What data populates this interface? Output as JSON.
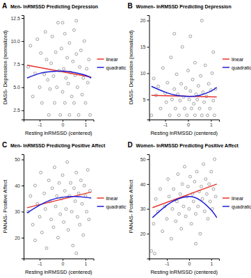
{
  "chart_data": [
    {
      "type": "scatter",
      "annotations": [
        "A"
      ],
      "title": "Men- lnRMSSD Predicting Depression",
      "x_label": "Resting lnRMSSD (centered)",
      "y_label": "DASS- Depression (normalized)",
      "xlim": [
        -1.7,
        1.35
      ],
      "xticks": [
        -1,
        0,
        1
      ],
      "ylim": [
        1.5,
        12.8
      ],
      "yticks": [
        2.5,
        {
          "value": 5,
          "label": "5.0"
        },
        7.5,
        {
          "value": 10,
          "label": "10.0"
        },
        12.5
      ],
      "color": "#555555",
      "marker": "circle",
      "legend": "right",
      "x": [
        -1.5,
        -1.4,
        -1.2,
        -1.1,
        -1.0,
        -0.95,
        -0.9,
        -0.8,
        -0.75,
        -0.7,
        -0.6,
        -0.55,
        -0.5,
        -0.45,
        -0.4,
        -0.35,
        -0.3,
        -0.25,
        -0.2,
        -0.15,
        -0.1,
        -0.05,
        0,
        0.05,
        0.1,
        0.1,
        0.15,
        0.2,
        0.25,
        0.3,
        0.3,
        0.35,
        0.4,
        0.45,
        0.5,
        0.5,
        0.55,
        0.6,
        0.65,
        0.7,
        0.75,
        0.8,
        0.85,
        0.9,
        0.95,
        1.0,
        1.05,
        1.1,
        1.15,
        1.2,
        -1.3,
        -0.65,
        0.0,
        0.6
      ],
      "values": [
        7.2,
        9.5,
        6.5,
        10.2,
        5.0,
        8.7,
        3.3,
        6.4,
        11.0,
        8.0,
        2.0,
        4.8,
        7.6,
        10.5,
        6.2,
        3.3,
        8.8,
        5.0,
        12.0,
        6.8,
        2.0,
        9.2,
        4.5,
        7.0,
        10.8,
        3.3,
        6.0,
        8.2,
        5.4,
        2.0,
        9.8,
        6.6,
        4.0,
        7.8,
        11.2,
        3.3,
        6.3,
        8.6,
        5.0,
        2.0,
        7.2,
        9.0,
        4.2,
        6.0,
        10.0,
        3.3,
        7.0,
        5.5,
        8.0,
        2.0,
        4.0,
        5.8,
        12.0,
        12.2
      ],
      "series": [
        {
          "name": "linear",
          "color": "#e8322b",
          "type": "line",
          "line_style": "solid",
          "x": [
            -1.55,
            1.25
          ],
          "values": [
            7.4,
            6.1
          ]
        },
        {
          "name": "quadratic",
          "color": "#1c1cd8",
          "type": "line",
          "line_style": "solid",
          "x": [
            -1.55,
            -1,
            -0.5,
            0,
            0.5,
            1,
            1.25
          ],
          "values": [
            6.0,
            6.5,
            6.7,
            6.75,
            6.6,
            6.3,
            6.0
          ]
        }
      ]
    },
    {
      "type": "scatter",
      "annotations": [
        "B"
      ],
      "title": "Women- lnRMSSD Predicting Depression",
      "x_label": "Resting lnRMSSD (centered)",
      "y_label": "DASS- Depression (normalized)",
      "xlim": [
        -1.7,
        1.35
      ],
      "xticks": [
        -1,
        0,
        1
      ],
      "ylim": [
        1.2,
        21
      ],
      "yticks": [
        5,
        10,
        15,
        20
      ],
      "color": "#555555",
      "marker": "circle",
      "legend": "right",
      "x": [
        -1.6,
        -1.5,
        -1.4,
        -1.3,
        -1.2,
        -1.1,
        -1.0,
        -0.95,
        -0.9,
        -0.8,
        -0.75,
        -0.7,
        -0.6,
        -0.55,
        -0.5,
        -0.45,
        -0.4,
        -0.35,
        -0.3,
        -0.25,
        -0.2,
        -0.15,
        -0.1,
        -0.05,
        0,
        0.05,
        0.1,
        0.15,
        0.2,
        0.25,
        0.3,
        0.3,
        0.35,
        0.4,
        0.45,
        0.5,
        0.55,
        0.6,
        0.65,
        0.7,
        0.75,
        0.8,
        0.85,
        0.9,
        0.95,
        1.0,
        1.05,
        1.1,
        1.15,
        1.2,
        0.1,
        0.6,
        -0.6,
        1.1
      ],
      "values": [
        2.0,
        9.0,
        5.8,
        7.5,
        3.3,
        11.0,
        6.2,
        4.5,
        8.2,
        2.0,
        13.0,
        5.0,
        7.0,
        3.3,
        9.8,
        6.0,
        2.0,
        4.8,
        8.0,
        15.0,
        5.5,
        3.3,
        7.2,
        2.0,
        10.5,
        5.0,
        6.6,
        3.3,
        8.8,
        4.2,
        2.0,
        12.0,
        6.0,
        5.0,
        7.6,
        3.3,
        9.5,
        2.0,
        6.4,
        4.5,
        11.5,
        5.6,
        2.0,
        8.0,
        3.3,
        6.8,
        10.0,
        4.8,
        2.0,
        7.0,
        17.0,
        20.0,
        17.5,
        14.0
      ],
      "series": [
        {
          "name": "linear",
          "color": "#e8322b",
          "type": "line",
          "line_style": "solid",
          "x": [
            -1.6,
            1.25
          ],
          "values": [
            5.8,
            5.5
          ]
        },
        {
          "name": "quadratic",
          "color": "#1c1cd8",
          "type": "line",
          "line_style": "solid",
          "x": [
            -1.6,
            -1,
            -0.5,
            0,
            0.5,
            1,
            1.25
          ],
          "values": [
            7.5,
            6.4,
            5.8,
            5.6,
            5.8,
            6.6,
            7.3
          ]
        }
      ]
    },
    {
      "type": "scatter",
      "annotations": [
        "C"
      ],
      "title": "Men- lnRMSSD Predicting Positive Affect",
      "x_label": "Resting lnRMSSD (centered)",
      "y_label": "PANAS- Positive Affect",
      "xlim": [
        -1.7,
        1.35
      ],
      "xticks": [
        -1,
        0,
        1
      ],
      "ylim": [
        12,
        52
      ],
      "yticks": [
        20,
        30,
        40,
        50
      ],
      "color": "#555555",
      "marker": "circle",
      "legend": "right",
      "x": [
        -1.5,
        -1.4,
        -1.3,
        -1.2,
        -1.1,
        -1.0,
        -0.95,
        -0.9,
        -0.8,
        -0.75,
        -0.7,
        -0.6,
        -0.55,
        -0.5,
        -0.45,
        -0.4,
        -0.35,
        -0.3,
        -0.25,
        -0.2,
        -0.15,
        -0.1,
        -0.05,
        0,
        0.05,
        0.1,
        0.15,
        0.2,
        0.25,
        0.3,
        0.35,
        0.4,
        0.45,
        0.5,
        0.55,
        0.6,
        0.65,
        0.7,
        0.75,
        0.8,
        0.85,
        0.9,
        0.95,
        1.0,
        1.05,
        1.1,
        1.15,
        1.2,
        -1.2,
        0.6
      ],
      "values": [
        30,
        36,
        25,
        40,
        33,
        28,
        45,
        22,
        37,
        31,
        16,
        42,
        34,
        27,
        39,
        24,
        47,
        32,
        36,
        20,
        41,
        29,
        35,
        44,
        26,
        38,
        31,
        49,
        23,
        36,
        41,
        30,
        17,
        39,
        34,
        45,
        28,
        37,
        25,
        42,
        33,
        21,
        40,
        36,
        30,
        46,
        27,
        38,
        19,
        14
      ],
      "series": [
        {
          "name": "linear",
          "color": "#e8322b",
          "type": "line",
          "line_style": "solid",
          "x": [
            -1.55,
            1.25
          ],
          "values": [
            31.5,
            37.5
          ]
        },
        {
          "name": "quadratic",
          "color": "#1c1cd8",
          "type": "line",
          "line_style": "solid",
          "x": [
            -1.55,
            -1,
            -0.5,
            0,
            0.5,
            1,
            1.25
          ],
          "values": [
            29.5,
            32.5,
            34.5,
            35.5,
            35.8,
            35.5,
            35.2
          ]
        }
      ]
    },
    {
      "type": "scatter",
      "annotations": [
        "D"
      ],
      "title": "Women- lnRMSSD Predicting Positive Affect",
      "x_label": "Resting lnRMSSD (centered)",
      "y_label": "PANAS- Positive Affect",
      "xlim": [
        -1.8,
        1.35
      ],
      "xticks": [
        -1,
        0,
        1
      ],
      "ylim": [
        10,
        52
      ],
      "yticks": [
        20,
        30,
        40,
        50
      ],
      "color": "#555555",
      "marker": "circle",
      "legend": "right",
      "x": [
        -1.6,
        -1.5,
        -1.4,
        -1.3,
        -1.2,
        -1.1,
        -1.0,
        -0.95,
        -0.9,
        -0.8,
        -0.75,
        -0.7,
        -0.6,
        -0.55,
        -0.5,
        -0.45,
        -0.4,
        -0.35,
        -0.3,
        -0.25,
        -0.2,
        -0.15,
        -0.1,
        -0.05,
        0,
        0.05,
        0.1,
        0.15,
        0.2,
        0.25,
        0.3,
        0.35,
        0.4,
        0.45,
        0.5,
        0.55,
        0.6,
        0.65,
        0.7,
        0.75,
        0.8,
        0.85,
        0.9,
        0.95,
        1.0,
        1.05,
        1.1,
        1.15,
        1.2,
        -1.7,
        -1.55,
        0.3
      ],
      "values": [
        24,
        34,
        29,
        38,
        21,
        31,
        26,
        42,
        35,
        18,
        30,
        38,
        25,
        33,
        44,
        28,
        36,
        22,
        40,
        31,
        47,
        27,
        35,
        39,
        30,
        43,
        24,
        36,
        33,
        41,
        28,
        45,
        31,
        37,
        20,
        39,
        34,
        48,
        29,
        42,
        36,
        26,
        40,
        33,
        45,
        30,
        38,
        50,
        35,
        13,
        12,
        16
      ],
      "series": [
        {
          "name": "linear",
          "color": "#e8322b",
          "type": "line",
          "line_style": "solid",
          "x": [
            -1.65,
            1.25
          ],
          "values": [
            30.5,
            40
          ]
        },
        {
          "name": "quadratic",
          "color": "#1c1cd8",
          "type": "line",
          "line_style": "solid",
          "x": [
            -1.65,
            -1,
            -0.5,
            0,
            0.5,
            1,
            1.25
          ],
          "values": [
            26.5,
            31.5,
            34,
            35,
            33.5,
            29.5,
            26.5
          ]
        }
      ]
    }
  ]
}
